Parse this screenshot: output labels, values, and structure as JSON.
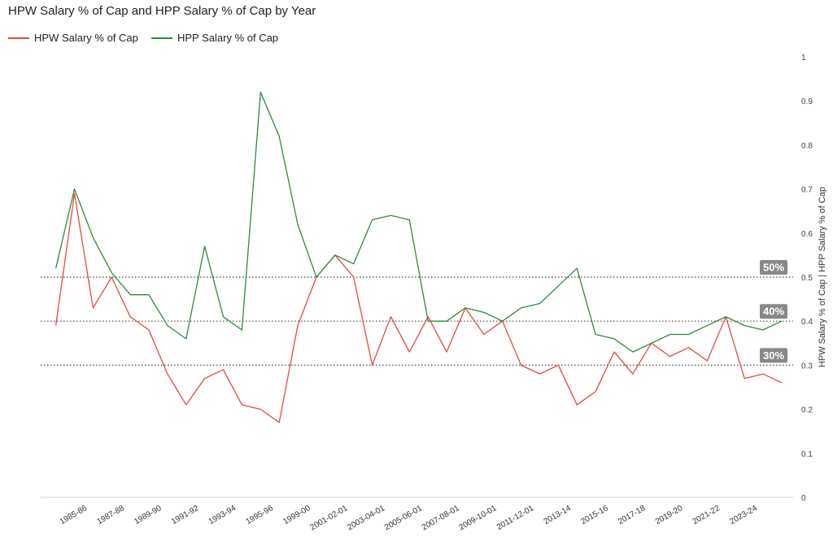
{
  "chart_data": {
    "type": "line",
    "title": "HPW Salary % of Cap and HPP Salary % of Cap by Year",
    "ylabel": "HPW Salary % of Cap | HPP Salary % of Cap",
    "xlabel": "",
    "ylim": [
      0,
      1
    ],
    "y_ticks": [
      "0",
      "0.1",
      "0.2",
      "0.3",
      "0.4",
      "0.5",
      "0.6",
      "0.7",
      "0.8",
      "0.9",
      "1"
    ],
    "y_axis_position": "right",
    "legend_position": "top-left",
    "grid": false,
    "x_tick_labels": [
      "1985-86",
      "1987-88",
      "1989-90",
      "1991-92",
      "1993-94",
      "1995-96",
      "1999-00",
      "2001-02-01",
      "2003-04-01",
      "2005-06-01",
      "2007-08-01",
      "2009-10-01",
      "2011-12-01",
      "2013-14",
      "2015-16",
      "2017-18",
      "2019-20",
      "2021-22",
      "2023-24"
    ],
    "reference_lines": [
      {
        "value": 0.5,
        "label": "50%"
      },
      {
        "value": 0.4,
        "label": "40%"
      },
      {
        "value": 0.3,
        "label": "30%"
      }
    ],
    "series": [
      {
        "name": "HPW Salary % of Cap",
        "color": "#e8473f",
        "values": [
          0.39,
          0.69,
          0.43,
          0.5,
          0.41,
          0.38,
          0.28,
          0.21,
          0.27,
          0.29,
          0.21,
          0.2,
          0.17,
          0.39,
          0.5,
          0.55,
          0.5,
          0.3,
          0.41,
          0.33,
          0.41,
          0.33,
          0.43,
          0.37,
          0.4,
          0.3,
          0.28,
          0.3,
          0.21,
          0.24,
          0.33,
          0.28,
          0.35,
          0.32,
          0.34,
          0.31,
          0.41,
          0.27,
          0.28,
          0.26
        ]
      },
      {
        "name": "HPP Salary % of Cap",
        "color": "#2e8b3a",
        "values": [
          0.52,
          0.7,
          0.59,
          0.51,
          0.46,
          0.46,
          0.39,
          0.36,
          0.57,
          0.41,
          0.38,
          0.92,
          0.82,
          0.62,
          0.5,
          0.55,
          0.53,
          0.63,
          0.64,
          0.63,
          0.4,
          0.4,
          0.43,
          0.42,
          0.4,
          0.43,
          0.44,
          0.48,
          0.52,
          0.37,
          0.36,
          0.33,
          0.35,
          0.37,
          0.37,
          0.39,
          0.41,
          0.39,
          0.38,
          0.4
        ]
      }
    ]
  }
}
